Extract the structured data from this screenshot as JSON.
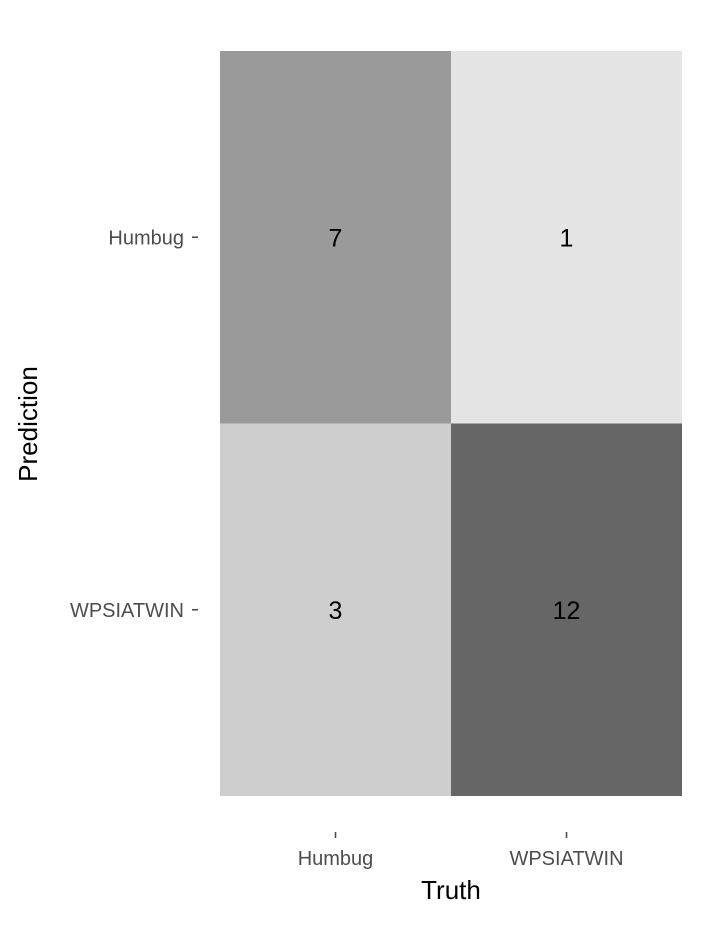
{
  "chart_data": {
    "type": "heatmap",
    "xlabel": "Truth",
    "ylabel": "Prediction",
    "x_categories": [
      "Humbug",
      "WPSIATWIN"
    ],
    "y_categories": [
      "Humbug",
      "WPSIATWIN"
    ],
    "cells": [
      {
        "prediction": "Humbug",
        "truth": "Humbug",
        "value": 7,
        "color": "#9a9a9a"
      },
      {
        "prediction": "Humbug",
        "truth": "WPSIATWIN",
        "value": 1,
        "color": "#e5e5e5"
      },
      {
        "prediction": "WPSIATWIN",
        "truth": "Humbug",
        "value": 3,
        "color": "#cecece"
      },
      {
        "prediction": "WPSIATWIN",
        "truth": "WPSIATWIN",
        "value": 12,
        "color": "#666666"
      }
    ],
    "legend": "none",
    "grid": false
  }
}
